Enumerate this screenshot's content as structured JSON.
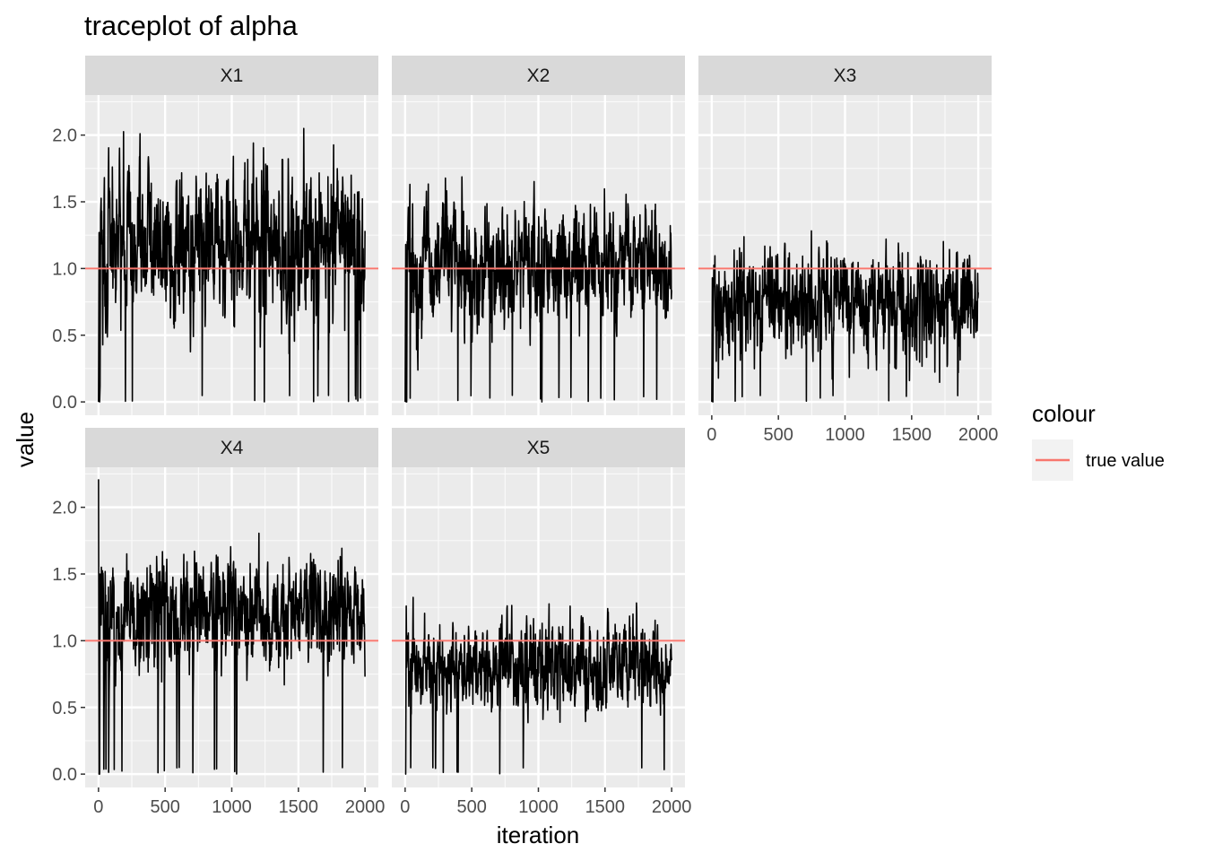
{
  "chart_data": {
    "type": "line",
    "title": "traceplot of alpha",
    "xlabel": "iteration",
    "ylabel": "value",
    "xlim": [
      -100,
      2100
    ],
    "ylim": [
      -0.1,
      2.3
    ],
    "x_ticks": [
      0,
      500,
      1000,
      1500,
      2000
    ],
    "y_ticks": [
      0.0,
      0.5,
      1.0,
      1.5,
      2.0
    ],
    "y_tick_labels": [
      "0.0",
      "0.5",
      "1.0",
      "1.5",
      "2.0"
    ],
    "grid": true,
    "legend": {
      "title": "colour",
      "placement": "right",
      "entries": [
        {
          "label": "true value",
          "color": "#f8766d"
        }
      ]
    },
    "facets": [
      {
        "label": "X1",
        "true_value": 1.0,
        "mean": 1.17,
        "sd": 0.28,
        "min": 0.0,
        "max": 2.05,
        "initial": [
          0.0,
          1.27,
          0.0,
          0.12,
          1.4
        ]
      },
      {
        "label": "X2",
        "true_value": 1.0,
        "mean": 1.05,
        "sd": 0.22,
        "min": 0.0,
        "max": 1.87,
        "initial": [
          0.0,
          1.18,
          0.0,
          0.0,
          1.2
        ]
      },
      {
        "label": "X3",
        "true_value": 1.0,
        "mean": 0.74,
        "sd": 0.2,
        "min": 0.0,
        "max": 1.5,
        "initial": [
          0.0,
          0.93,
          0.0,
          0.7
        ]
      },
      {
        "label": "X4",
        "true_value": 1.0,
        "mean": 1.2,
        "sd": 0.2,
        "min": 0.0,
        "max": 2.21,
        "initial": [
          2.21,
          0.0,
          0.0,
          1.5,
          1.3
        ]
      },
      {
        "label": "X5",
        "true_value": 1.0,
        "mean": 0.82,
        "sd": 0.16,
        "min": 0.0,
        "max": 1.33,
        "initial": [
          0.0,
          0.0,
          1.26,
          0.8
        ]
      }
    ],
    "series_color": "#000000",
    "true_value_color": "#f8766d",
    "panel_bg": "#ebebeb",
    "strip_bg": "#d9d9d9"
  }
}
